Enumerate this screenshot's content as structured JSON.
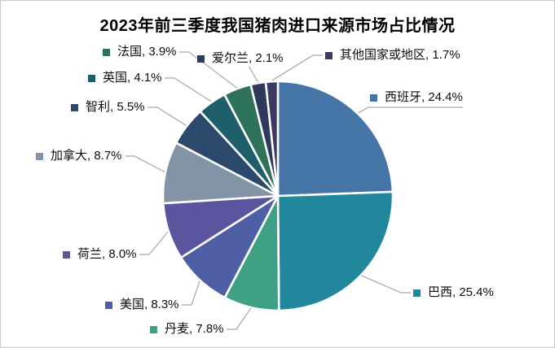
{
  "chart_data": {
    "type": "pie",
    "title": "2023年前三季度我国猪肉进口来源市场占比情况",
    "unit": "%",
    "direction": "clockwise",
    "start_angle_deg": 0,
    "legend_position": "callout-labels",
    "slice_border_color": "#FFFFFF",
    "leader_line_color": "#A6A6A6",
    "slices": [
      {
        "id": "spain",
        "name": "西班牙",
        "value": 24.4,
        "display": "西班牙, 24.4%",
        "color": "#4574A7"
      },
      {
        "id": "brazil",
        "name": "巴西",
        "value": 25.4,
        "display": "巴西, 25.4%",
        "color": "#20879C"
      },
      {
        "id": "denmark",
        "name": "丹麦",
        "value": 7.8,
        "display": "丹麦, 7.8%",
        "color": "#3FA184"
      },
      {
        "id": "usa",
        "name": "美国",
        "value": 8.3,
        "display": "美国, 8.3%",
        "color": "#4F5FA5"
      },
      {
        "id": "netherlands",
        "name": "荷兰",
        "value": 8.0,
        "display": "荷兰, 8.0%",
        "color": "#5B55A0"
      },
      {
        "id": "canada",
        "name": "加拿大",
        "value": 8.7,
        "display": "加拿大, 8.7%",
        "color": "#8494A7"
      },
      {
        "id": "chile",
        "name": "智利",
        "value": 5.5,
        "display": "智利, 5.5%",
        "color": "#2B4A6B"
      },
      {
        "id": "uk",
        "name": "英国",
        "value": 4.1,
        "display": "英国, 4.1%",
        "color": "#1E5F6B"
      },
      {
        "id": "france",
        "name": "法国",
        "value": 3.9,
        "display": "法国, 3.9%",
        "color": "#2E7359"
      },
      {
        "id": "ireland",
        "name": "爱尔兰",
        "value": 2.1,
        "display": "爱尔兰, 2.1%",
        "color": "#2E3A5C"
      },
      {
        "id": "others",
        "name": "其他国家或地区",
        "value": 1.7,
        "display": "其他国家或地区, 1.7%",
        "color": "#3B3A63"
      }
    ]
  }
}
